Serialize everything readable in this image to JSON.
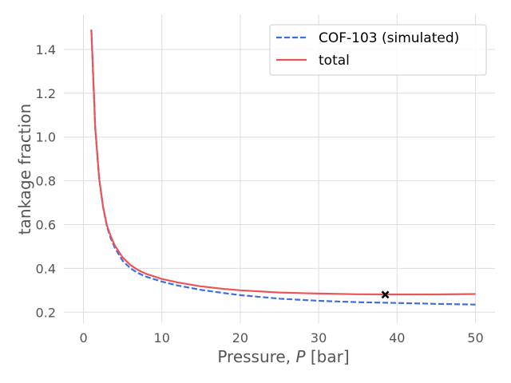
{
  "chart_data": {
    "type": "line",
    "xlabel_prefix": "Pressure, ",
    "xlabel_var": "P",
    "xlabel_suffix": " [bar]",
    "ylabel": "tankage fraction",
    "xlim": [
      -2.5,
      52.5
    ],
    "ylim": [
      0.15,
      1.56
    ],
    "xticks": [
      0,
      10,
      20,
      30,
      40,
      50
    ],
    "yticks": [
      0.2,
      0.4,
      0.6,
      0.8,
      1.0,
      1.2,
      1.4
    ],
    "grid": true,
    "legend_position": "top-right",
    "series": [
      {
        "name": "COF-103 (simulated)",
        "color": "#3a6fe8",
        "style": "dashed",
        "x": [
          1,
          1.5,
          2,
          2.5,
          3,
          3.5,
          4,
          5,
          6,
          7,
          8,
          10,
          12,
          15,
          18,
          20,
          25,
          30,
          35,
          40,
          45,
          50
        ],
        "y": [
          1.49,
          1.04,
          0.81,
          0.68,
          0.59,
          0.535,
          0.495,
          0.435,
          0.4,
          0.378,
          0.362,
          0.34,
          0.322,
          0.302,
          0.287,
          0.278,
          0.262,
          0.252,
          0.246,
          0.242,
          0.238,
          0.235
        ]
      },
      {
        "name": "total",
        "color": "#ea5656",
        "style": "solid",
        "x": [
          1,
          1.5,
          2,
          2.5,
          3,
          3.5,
          4,
          5,
          6,
          7,
          8,
          10,
          12,
          15,
          18,
          20,
          25,
          30,
          35,
          40,
          45,
          50
        ],
        "y": [
          1.49,
          1.04,
          0.81,
          0.68,
          0.595,
          0.545,
          0.505,
          0.45,
          0.415,
          0.392,
          0.375,
          0.352,
          0.336,
          0.318,
          0.306,
          0.3,
          0.29,
          0.285,
          0.282,
          0.281,
          0.281,
          0.283
        ]
      }
    ],
    "marker": {
      "x": 38.5,
      "y": 0.28,
      "symbol": "x",
      "color": "#000000"
    }
  }
}
